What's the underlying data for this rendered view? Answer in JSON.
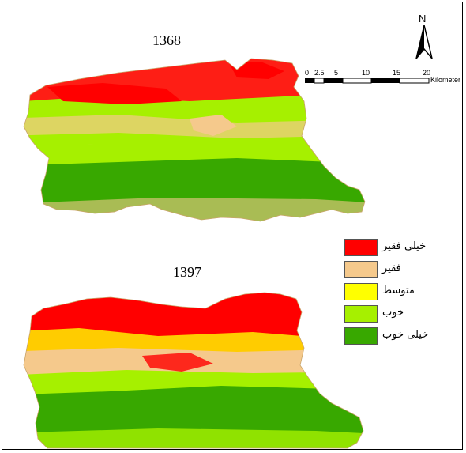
{
  "maps": [
    {
      "year_label": "1368"
    },
    {
      "year_label": "1397"
    }
  ],
  "north_arrow": {
    "label": "N",
    "icon": "north-arrow-icon"
  },
  "scale_bar": {
    "ticks": [
      "0",
      "2.5",
      "5",
      "10",
      "15",
      "20"
    ],
    "unit": "Kilometer"
  },
  "legend": {
    "items": [
      {
        "label": "خیلی فقیر",
        "color": "#ff0000"
      },
      {
        "label": "فقیر",
        "color": "#f5c98c"
      },
      {
        "label": "متوسط",
        "color": "#ffff00"
      },
      {
        "label": "خوب",
        "color": "#a6f000"
      },
      {
        "label": "خیلی خوب",
        "color": "#38a800"
      }
    ]
  }
}
